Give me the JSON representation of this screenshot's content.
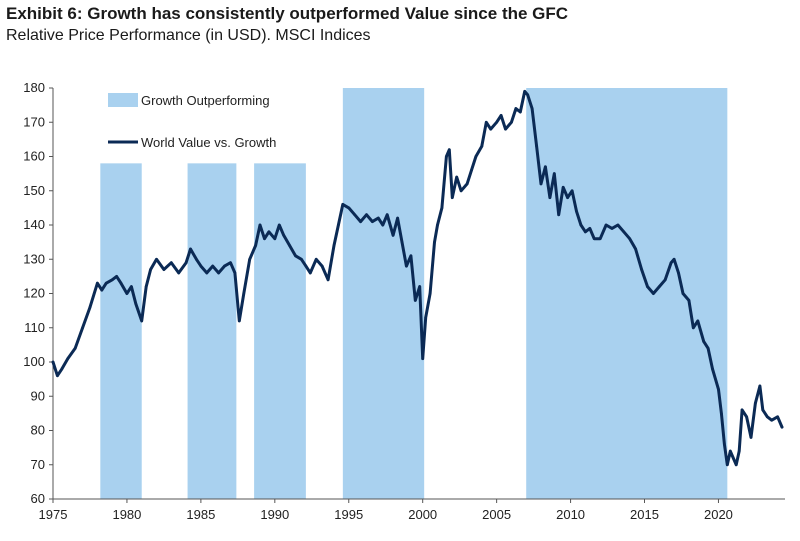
{
  "title": "Exhibit 6: Growth has consistently outperformed Value since the GFC",
  "subtitle": "Relative Price Performance (in USD). MSCI Indices",
  "colors": {
    "line": "#0b2a55",
    "band": "#a9d1ef"
  },
  "chart_data": {
    "type": "line",
    "title": "Exhibit 6: Growth has consistently outperformed Value since the GFC",
    "xlabel": "",
    "ylabel": "",
    "xlim": [
      1975,
      2024.5
    ],
    "ylim": [
      60,
      180
    ],
    "x_ticks": [
      1975,
      1980,
      1985,
      1990,
      1995,
      2000,
      2005,
      2010,
      2015,
      2020
    ],
    "y_ticks": [
      60,
      70,
      80,
      90,
      100,
      110,
      120,
      130,
      140,
      150,
      160,
      170,
      180
    ],
    "legend": [
      {
        "label": "Growth Outperforming",
        "kind": "band"
      },
      {
        "label": "World Value vs. Growth",
        "kind": "line"
      }
    ],
    "bands": [
      {
        "start": 1978.2,
        "end": 1981.0,
        "top": 158
      },
      {
        "start": 1984.1,
        "end": 1987.4,
        "top": 158
      },
      {
        "start": 1988.6,
        "end": 1992.1,
        "top": 158
      },
      {
        "start": 1994.6,
        "end": 2000.1,
        "top": 180
      },
      {
        "start": 2007.0,
        "end": 2020.6,
        "top": 180
      }
    ],
    "series": [
      {
        "name": "World Value vs. Growth",
        "x": [
          1975.0,
          1975.3,
          1975.6,
          1976.0,
          1976.5,
          1977.0,
          1977.5,
          1978.0,
          1978.3,
          1978.6,
          1979.0,
          1979.3,
          1979.6,
          1980.0,
          1980.3,
          1980.6,
          1981.0,
          1981.3,
          1981.6,
          1982.0,
          1982.5,
          1983.0,
          1983.5,
          1984.0,
          1984.3,
          1984.7,
          1985.0,
          1985.4,
          1985.8,
          1986.2,
          1986.6,
          1987.0,
          1987.3,
          1987.6,
          1987.9,
          1988.3,
          1988.7,
          1989.0,
          1989.3,
          1989.6,
          1990.0,
          1990.3,
          1990.6,
          1991.0,
          1991.4,
          1991.8,
          1992.1,
          1992.4,
          1992.8,
          1993.2,
          1993.6,
          1994.0,
          1994.3,
          1994.6,
          1995.0,
          1995.4,
          1995.8,
          1996.2,
          1996.6,
          1997.0,
          1997.3,
          1997.6,
          1998.0,
          1998.3,
          1998.6,
          1998.9,
          1999.2,
          1999.5,
          1999.8,
          2000.0,
          2000.2,
          2000.5,
          2000.8,
          2001.0,
          2001.3,
          2001.6,
          2001.8,
          2002.0,
          2002.3,
          2002.6,
          2003.0,
          2003.3,
          2003.6,
          2004.0,
          2004.3,
          2004.6,
          2005.0,
          2005.3,
          2005.6,
          2006.0,
          2006.3,
          2006.6,
          2006.9,
          2007.1,
          2007.4,
          2007.7,
          2008.0,
          2008.3,
          2008.6,
          2008.9,
          2009.2,
          2009.5,
          2009.8,
          2010.1,
          2010.4,
          2010.7,
          2011.0,
          2011.3,
          2011.6,
          2012.0,
          2012.4,
          2012.8,
          2013.2,
          2013.6,
          2014.0,
          2014.4,
          2014.8,
          2015.2,
          2015.6,
          2016.0,
          2016.4,
          2016.8,
          2017.0,
          2017.3,
          2017.6,
          2018.0,
          2018.3,
          2018.6,
          2019.0,
          2019.3,
          2019.6,
          2020.0,
          2020.2,
          2020.4,
          2020.6,
          2020.8,
          2021.0,
          2021.2,
          2021.4,
          2021.6,
          2021.9,
          2022.2,
          2022.5,
          2022.8,
          2023.0,
          2023.3,
          2023.6,
          2024.0,
          2024.3
        ],
        "values": [
          100,
          96,
          98,
          101,
          104,
          110,
          116,
          123,
          121,
          123,
          124,
          125,
          123,
          120,
          122,
          117,
          112,
          122,
          127,
          130,
          127,
          129,
          126,
          129,
          133,
          130,
          128,
          126,
          128,
          126,
          128,
          129,
          126,
          112,
          120,
          130,
          134,
          140,
          136,
          138,
          136,
          140,
          137,
          134,
          131,
          130,
          128,
          126,
          130,
          128,
          124,
          134,
          140,
          146,
          145,
          143,
          141,
          143,
          141,
          142,
          140,
          143,
          137,
          142,
          135,
          128,
          131,
          118,
          122,
          101,
          113,
          120,
          135,
          140,
          145,
          160,
          162,
          148,
          154,
          150,
          152,
          156,
          160,
          163,
          170,
          168,
          170,
          172,
          168,
          170,
          174,
          173,
          179,
          178,
          174,
          163,
          152,
          157,
          148,
          155,
          143,
          151,
          148,
          150,
          144,
          140,
          138,
          139,
          136,
          136,
          140,
          139,
          140,
          138,
          136,
          133,
          127,
          122,
          120,
          122,
          124,
          129,
          130,
          126,
          120,
          118,
          110,
          112,
          106,
          104,
          98,
          92,
          85,
          76,
          70,
          74,
          72,
          70,
          74,
          86,
          84,
          78,
          88,
          93,
          86,
          84,
          83,
          84,
          81
        ]
      }
    ]
  }
}
